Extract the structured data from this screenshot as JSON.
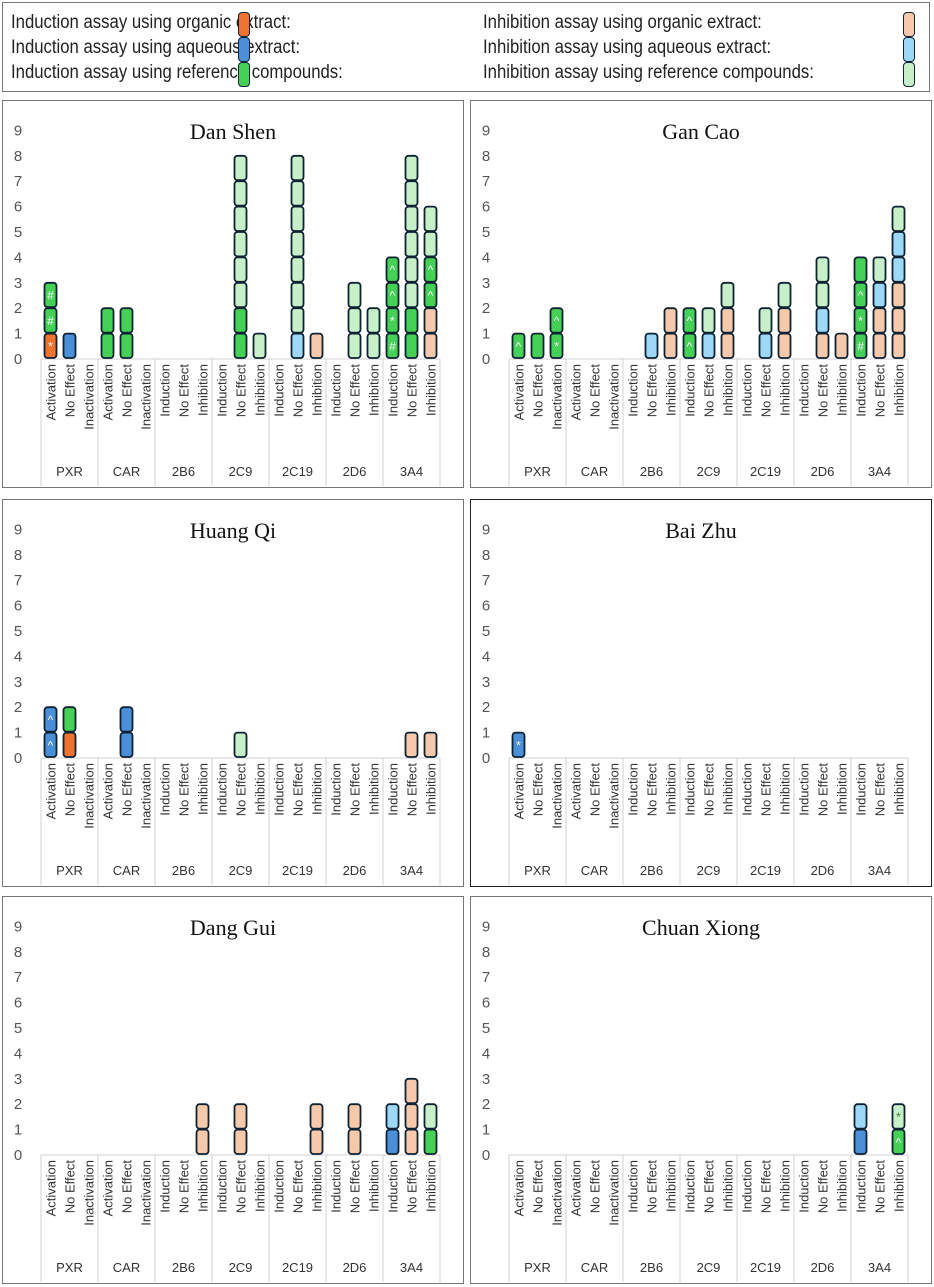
{
  "legend": [
    {
      "code": "O",
      "label": "Induction assay using organic extract:",
      "color": "#ee7230"
    },
    {
      "code": "B",
      "label": "Induction assay using aqueous extract:",
      "color": "#4a8fd8"
    },
    {
      "code": "G",
      "label": "Induction assay using reference compounds:",
      "color": "#44d155"
    },
    {
      "code": "P",
      "label": "Inhibition assay using organic extract:",
      "color": "#f7c9ab"
    },
    {
      "code": "LB",
      "label": "Inhibition assay using aqueous extract:",
      "color": "#9ed8f7"
    },
    {
      "code": "LG",
      "label": "Inhibition assay using reference compounds:",
      "color": "#c8f0c8"
    }
  ],
  "groups": [
    {
      "name": "PXR",
      "columns": [
        "Activation",
        "No Effect",
        "Inactivation"
      ]
    },
    {
      "name": "CAR",
      "columns": [
        "Activation",
        "No Effect",
        "Inactivation"
      ]
    },
    {
      "name": "2B6",
      "columns": [
        "Induction",
        "No Effect",
        "Inhibition"
      ]
    },
    {
      "name": "2C9",
      "columns": [
        "Induction",
        "No Effect",
        "Inhibition"
      ]
    },
    {
      "name": "2C19",
      "columns": [
        "Induction",
        "No Effect",
        "Inhibition"
      ]
    },
    {
      "name": "2D6",
      "columns": [
        "Induction",
        "No Effect",
        "Inhibition"
      ]
    },
    {
      "name": "3A4",
      "columns": [
        "Induction",
        "No Effect",
        "Inhibition"
      ]
    }
  ],
  "chart_data": [
    {
      "type": "bar",
      "title": "Dan Shen",
      "ylim": [
        0,
        9
      ],
      "yticks": [
        "0",
        "1",
        "2",
        "3",
        "4",
        "5",
        "6",
        "7",
        "8",
        "9"
      ],
      "stacks": {
        "PXR|Activation": [
          "O*",
          "G#",
          "G#"
        ],
        "PXR|No Effect": [
          "B"
        ],
        "CAR|Activation": [
          "G",
          "G"
        ],
        "CAR|No Effect": [
          "G",
          "G"
        ],
        "2C9|No Effect": [
          "G",
          "G",
          "LG",
          "LG",
          "LG",
          "LG",
          "LG",
          "LG"
        ],
        "2C9|Inhibition": [
          "LG"
        ],
        "2C19|No Effect": [
          "LB",
          "LG",
          "LG",
          "LG",
          "LG",
          "LG",
          "LG",
          "LG"
        ],
        "2C19|Inhibition": [
          "P"
        ],
        "2D6|No Effect": [
          "LG",
          "LG",
          "LG"
        ],
        "2D6|Inhibition": [
          "LG",
          "LG"
        ],
        "3A4|Induction": [
          "G#",
          "G*",
          "G^",
          "G^"
        ],
        "3A4|No Effect": [
          "G",
          "G",
          "LG",
          "LG",
          "LG",
          "LG",
          "LG",
          "LG"
        ],
        "3A4|Inhibition": [
          "P",
          "P",
          "G^",
          "G^",
          "LG",
          "LG"
        ]
      }
    },
    {
      "type": "bar",
      "title": "Gan Cao",
      "ylim": [
        0,
        9
      ],
      "yticks": [
        "0",
        "1",
        "2",
        "3",
        "4",
        "5",
        "6",
        "7",
        "8",
        "9"
      ],
      "stacks": {
        "PXR|Activation": [
          "G^"
        ],
        "PXR|No Effect": [
          "G"
        ],
        "PXR|Inactivation": [
          "G*",
          "G^"
        ],
        "2B6|No Effect": [
          "LB"
        ],
        "2B6|Inhibition": [
          "P",
          "P"
        ],
        "2C9|Induction": [
          "G^",
          "G^"
        ],
        "2C9|No Effect": [
          "LB",
          "LG"
        ],
        "2C9|Inhibition": [
          "P",
          "P",
          "LG"
        ],
        "2C19|No Effect": [
          "LB",
          "LG"
        ],
        "2C19|Inhibition": [
          "P",
          "P",
          "LG"
        ],
        "2D6|No Effect": [
          "P",
          "LB",
          "LG",
          "LG"
        ],
        "2D6|Inhibition": [
          "P"
        ],
        "3A4|Induction": [
          "G#",
          "G*",
          "G^",
          "G"
        ],
        "3A4|No Effect": [
          "P",
          "P",
          "LB",
          "LG"
        ],
        "3A4|Inhibition": [
          "P",
          "P",
          "P",
          "LB",
          "LB",
          "LG"
        ]
      }
    },
    {
      "type": "bar",
      "title": "Huang Qi",
      "ylim": [
        0,
        9
      ],
      "yticks": [
        "0",
        "1",
        "2",
        "3",
        "4",
        "5",
        "6",
        "7",
        "8",
        "9"
      ],
      "stacks": {
        "PXR|Activation": [
          "B^",
          "B^"
        ],
        "PXR|No Effect": [
          "O",
          "G"
        ],
        "CAR|No Effect": [
          "B",
          "B"
        ],
        "2C9|No Effect": [
          "LG"
        ],
        "3A4|No Effect": [
          "P"
        ],
        "3A4|Inhibition": [
          "P"
        ]
      }
    },
    {
      "type": "bar",
      "title": "Bai Zhu",
      "ylim": [
        0,
        9
      ],
      "yticks": [
        "0",
        "1",
        "2",
        "3",
        "4",
        "5",
        "6",
        "7",
        "8",
        "9"
      ],
      "stacks": {
        "PXR|Activation": [
          "B*"
        ]
      }
    },
    {
      "type": "bar",
      "title": "Dang Gui",
      "ylim": [
        0,
        9
      ],
      "yticks": [
        "0",
        "1",
        "2",
        "3",
        "4",
        "5",
        "6",
        "7",
        "8",
        "9"
      ],
      "stacks": {
        "2B6|Inhibition": [
          "P",
          "P"
        ],
        "2C9|No Effect": [
          "P",
          "P"
        ],
        "2C19|Inhibition": [
          "P",
          "P"
        ],
        "2D6|No Effect": [
          "P",
          "P"
        ],
        "3A4|Induction": [
          "B",
          "LB"
        ],
        "3A4|No Effect": [
          "P",
          "P",
          "P"
        ],
        "3A4|Inhibition": [
          "G",
          "LG"
        ]
      }
    },
    {
      "type": "bar",
      "title": "Chuan Xiong",
      "ylim": [
        0,
        9
      ],
      "yticks": [
        "0",
        "1",
        "2",
        "3",
        "4",
        "5",
        "6",
        "7",
        "8",
        "9"
      ],
      "stacks": {
        "3A4|Induction": [
          "B",
          "LB"
        ],
        "3A4|Inhibition": [
          "G^",
          "LG*"
        ]
      }
    }
  ]
}
